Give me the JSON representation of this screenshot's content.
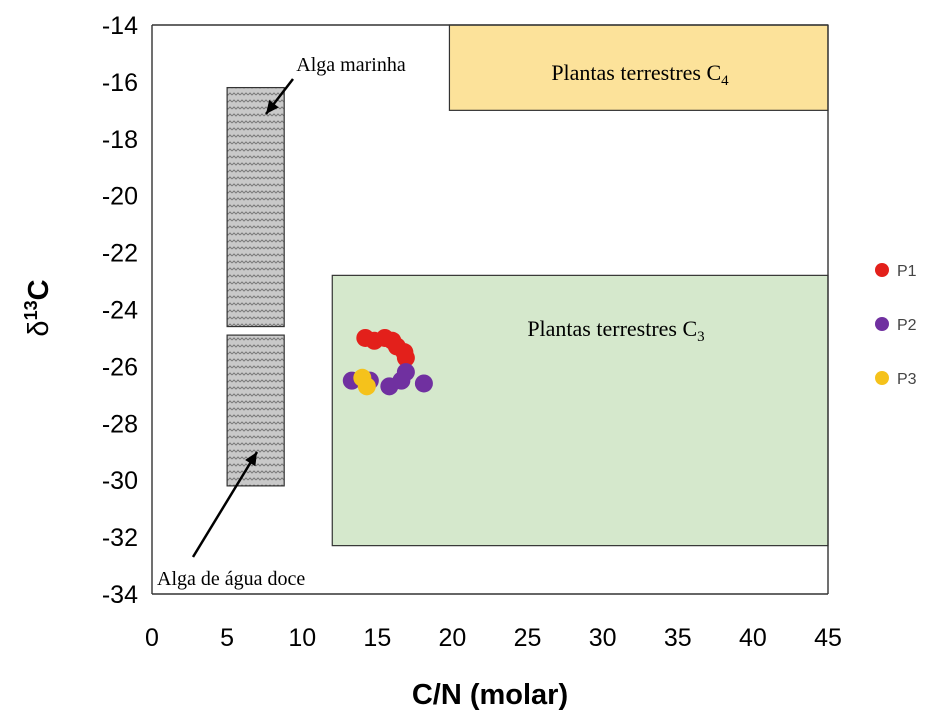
{
  "chart_data": {
    "type": "scatter",
    "title": "",
    "xlabel": "C/N (molar)",
    "ylabel": {
      "prefix": "δ",
      "sup": "13",
      "main": "C"
    },
    "xlim": [
      0,
      45
    ],
    "ylim": [
      -34,
      -14
    ],
    "x_ticks": [
      0,
      5,
      10,
      15,
      20,
      25,
      30,
      35,
      40,
      45
    ],
    "y_ticks": [
      -14,
      -16,
      -18,
      -20,
      -22,
      -24,
      -26,
      -28,
      -30,
      -32,
      -34
    ],
    "grid": false,
    "legend_position": "right",
    "regions": [
      {
        "label": "Plantas terrestres C",
        "sub": "4",
        "x": [
          19.8,
          45
        ],
        "y": [
          -17,
          -14
        ],
        "color": "#fce29a"
      },
      {
        "label": "Plantas terrestres C",
        "sub": "3",
        "x": [
          12,
          45
        ],
        "y": [
          -32.3,
          -22.8
        ],
        "color": "#d5e8cc"
      },
      {
        "label": "Alga marinha",
        "x": [
          5,
          8.8
        ],
        "y": [
          -24.6,
          -16.2
        ],
        "color": "#c8c8c8"
      },
      {
        "label": "Alga de água doce",
        "x": [
          5,
          8.8
        ],
        "y": [
          -30.2,
          -24.9
        ],
        "color": "#c8c8c8"
      }
    ],
    "series": [
      {
        "name": "P1",
        "color": "#e3201b",
        "points": [
          [
            14.2,
            -25.0
          ],
          [
            14.8,
            -25.1
          ],
          [
            15.5,
            -25.0
          ],
          [
            16.0,
            -25.1
          ],
          [
            16.3,
            -25.3
          ],
          [
            16.8,
            -25.5
          ],
          [
            16.9,
            -25.7
          ]
        ]
      },
      {
        "name": "P2",
        "color": "#7030a0",
        "points": [
          [
            13.3,
            -26.5
          ],
          [
            14.5,
            -26.5
          ],
          [
            15.8,
            -26.7
          ],
          [
            16.6,
            -26.5
          ],
          [
            16.9,
            -26.2
          ],
          [
            18.1,
            -26.6
          ]
        ]
      },
      {
        "name": "P3",
        "color": "#f5c21b",
        "points": [
          [
            14.0,
            -26.4
          ],
          [
            14.3,
            -26.7
          ]
        ]
      }
    ]
  }
}
